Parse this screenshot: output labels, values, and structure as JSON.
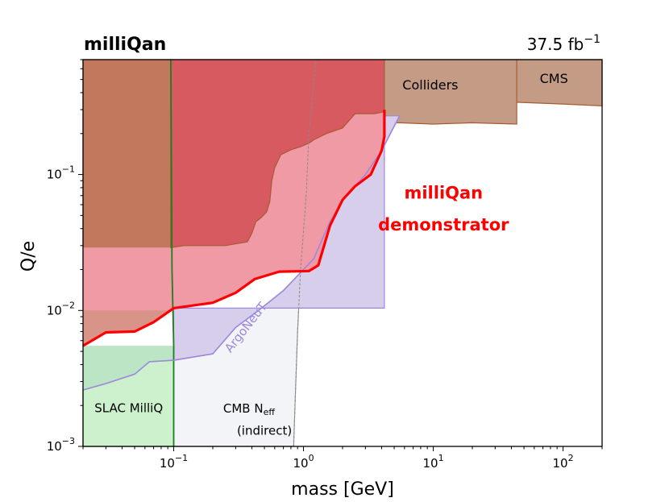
{
  "chart_data": {
    "type": "area",
    "title": "milliQan",
    "luminosity_label": "37.5 fb",
    "luminosity_exponent": "−1",
    "xlabel": "mass [GeV]",
    "ylabel": "Q/e",
    "x_scale": "log",
    "y_scale": "log",
    "xlim": [
      0.02,
      200
    ],
    "ylim": [
      0.001,
      0.7
    ],
    "grid": false,
    "x_ticks": [
      {
        "value": 0.1,
        "base": "10",
        "exp": "−1"
      },
      {
        "value": 1,
        "base": "10",
        "exp": "0"
      },
      {
        "value": 10,
        "base": "10",
        "exp": "1"
      },
      {
        "value": 100,
        "base": "10",
        "exp": "2"
      }
    ],
    "y_ticks": [
      {
        "value": 0.001,
        "base": "10",
        "exp": "−3"
      },
      {
        "value": 0.01,
        "base": "10",
        "exp": "−2"
      },
      {
        "value": 0.1,
        "base": "10",
        "exp": "−1"
      }
    ],
    "regions": [
      {
        "name": "Colliders",
        "fill": "#c49c86",
        "stroke": "#a85a34",
        "points": [
          [
            4.2,
            0.7
          ],
          [
            4.2,
            0.24
          ],
          [
            5.5,
            0.24
          ],
          [
            10,
            0.235
          ],
          [
            20,
            0.24
          ],
          [
            44,
            0.235
          ],
          [
            44,
            0.7
          ]
        ]
      },
      {
        "name": "CMS",
        "fill": "#c49c86",
        "stroke": "#a85a34",
        "points": [
          [
            44,
            0.7
          ],
          [
            44,
            0.34
          ],
          [
            100,
            0.33
          ],
          [
            200,
            0.32
          ],
          [
            200,
            0.7
          ]
        ]
      },
      {
        "name": "Colliders low-mass",
        "fill": "#c1785d",
        "stroke": "#a85a34",
        "points": [
          [
            0.02,
            0.7
          ],
          [
            0.02,
            0.01
          ],
          [
            0.032,
            0.01
          ],
          [
            0.095,
            0.01
          ],
          [
            0.095,
            0.7
          ]
        ]
      },
      {
        "name": "SLAC MilliQ",
        "fill": "#cdf1cd",
        "stroke": "#2b8a2b",
        "points": [
          [
            0.02,
            0.001
          ],
          [
            0.02,
            0.0026
          ],
          [
            0.03,
            0.0029
          ],
          [
            0.05,
            0.0034
          ],
          [
            0.065,
            0.0042
          ],
          [
            0.08,
            0.0053
          ],
          [
            0.1,
            0.0053
          ],
          [
            0.1,
            0.001
          ]
        ]
      },
      {
        "name": "SLAC MilliQ upper",
        "fill": "#bce5c6",
        "stroke": "none",
        "points": [
          [
            0.02,
            0.0026
          ],
          [
            0.02,
            0.0055
          ],
          [
            0.1,
            0.0055
          ],
          [
            0.1,
            0.0043
          ],
          [
            0.065,
            0.0042
          ],
          [
            0.05,
            0.0034
          ],
          [
            0.03,
            0.0029
          ]
        ]
      },
      {
        "name": "CMB Neff (indirect)",
        "fill": "#f2f4f7",
        "stroke": "#999999",
        "points": [
          [
            0.1,
            0.001
          ],
          [
            0.1,
            0.0043
          ],
          [
            0.2,
            0.0048
          ],
          [
            0.3,
            0.0075
          ],
          [
            0.45,
            0.01
          ],
          [
            0.7,
            0.014
          ],
          [
            1.0,
            0.02
          ],
          [
            1.2,
            0.024
          ],
          [
            1.35,
            0.7
          ],
          [
            1.25,
            0.7
          ],
          [
            1.1,
            0.2
          ],
          [
            1.05,
            0.07
          ],
          [
            0.95,
            0.02
          ],
          [
            0.9,
            0.007
          ],
          [
            0.86,
            0.002
          ],
          [
            0.84,
            0.001
          ]
        ]
      },
      {
        "name": "ArgoNeuT",
        "fill": "#d7ceeb",
        "stroke": "#9c88dc",
        "points": [
          [
            0.1,
            0.0043
          ],
          [
            0.2,
            0.0048
          ],
          [
            0.3,
            0.0075
          ],
          [
            0.45,
            0.01
          ],
          [
            0.7,
            0.014
          ],
          [
            1.0,
            0.02
          ],
          [
            1.2,
            0.024
          ],
          [
            1.6,
            0.045
          ],
          [
            2.0,
            0.065
          ],
          [
            3.0,
            0.1
          ],
          [
            4.0,
            0.15
          ],
          [
            5.5,
            0.27
          ],
          [
            4.2,
            0.27
          ],
          [
            4.2,
            0.0104
          ],
          [
            0.1,
            0.0104
          ]
        ]
      },
      {
        "name": "milliQan demonstrator",
        "fill": "#f09aa6",
        "stroke": "none",
        "points": [
          [
            0.02,
            0.0055
          ],
          [
            0.03,
            0.0069
          ],
          [
            0.05,
            0.007
          ],
          [
            0.07,
            0.0082
          ],
          [
            0.1,
            0.0104
          ],
          [
            0.2,
            0.0114
          ],
          [
            0.3,
            0.0135
          ],
          [
            0.42,
            0.017
          ],
          [
            0.65,
            0.0193
          ],
          [
            1.1,
            0.0195
          ],
          [
            1.3,
            0.0215
          ],
          [
            1.6,
            0.042
          ],
          [
            2.0,
            0.065
          ],
          [
            2.5,
            0.082
          ],
          [
            3.3,
            0.1
          ],
          [
            4.0,
            0.15
          ],
          [
            4.2,
            0.19
          ],
          [
            4.2,
            0.7
          ],
          [
            0.095,
            0.7
          ],
          [
            0.095,
            0.029
          ],
          [
            0.02,
            0.029
          ]
        ]
      },
      {
        "name": "Dark red exclusion",
        "fill": "#d65a5f",
        "stroke": "#a85a34",
        "points": [
          [
            0.095,
            0.7
          ],
          [
            0.095,
            0.029
          ],
          [
            0.12,
            0.03
          ],
          [
            0.25,
            0.03
          ],
          [
            0.37,
            0.032
          ],
          [
            0.4,
            0.037
          ],
          [
            0.43,
            0.045
          ],
          [
            0.47,
            0.048
          ],
          [
            0.52,
            0.053
          ],
          [
            0.55,
            0.063
          ],
          [
            0.57,
            0.09
          ],
          [
            0.6,
            0.112
          ],
          [
            0.67,
            0.14
          ],
          [
            0.8,
            0.152
          ],
          [
            0.95,
            0.16
          ],
          [
            1.1,
            0.17
          ],
          [
            1.2,
            0.18
          ],
          [
            1.5,
            0.2
          ],
          [
            2.0,
            0.22
          ],
          [
            2.5,
            0.28
          ],
          [
            3.5,
            0.28
          ],
          [
            4.2,
            0.29
          ],
          [
            4.2,
            0.7
          ]
        ]
      },
      {
        "name": "milliQan demonstrator low strip",
        "fill": "#d9948a",
        "stroke": "none",
        "points": [
          [
            0.02,
            0.0055
          ],
          [
            0.02,
            0.01
          ],
          [
            0.095,
            0.01
          ],
          [
            0.1,
            0.0104
          ],
          [
            0.07,
            0.0082
          ],
          [
            0.05,
            0.007
          ],
          [
            0.03,
            0.0069
          ]
        ]
      }
    ],
    "lines": [
      {
        "name": "SLAC MilliQ boundary",
        "color": "#1e7f1e",
        "width": 1.8,
        "points": [
          [
            0.095,
            0.7
          ],
          [
            0.096,
            0.1
          ],
          [
            0.097,
            0.02
          ],
          [
            0.1,
            0.0055
          ],
          [
            0.1,
            0.001
          ]
        ]
      },
      {
        "name": "ArgoNeuT",
        "color": "#9c88dc",
        "width": 1.6,
        "points": [
          [
            0.02,
            0.0026
          ],
          [
            0.03,
            0.0029
          ],
          [
            0.05,
            0.0034
          ],
          [
            0.065,
            0.0042
          ],
          [
            0.1,
            0.0043
          ],
          [
            0.2,
            0.0048
          ],
          [
            0.3,
            0.0075
          ],
          [
            0.45,
            0.01
          ],
          [
            0.7,
            0.014
          ],
          [
            1.0,
            0.02
          ],
          [
            1.2,
            0.024
          ],
          [
            1.6,
            0.045
          ],
          [
            2.0,
            0.065
          ],
          [
            3.0,
            0.1
          ],
          [
            4.0,
            0.15
          ],
          [
            5.5,
            0.27
          ]
        ]
      },
      {
        "name": "CMB Neff (indirect)",
        "color": "#888888",
        "width": 1.0,
        "dash": "3,2",
        "points": [
          [
            0.84,
            0.001
          ],
          [
            0.86,
            0.002
          ],
          [
            0.9,
            0.007
          ],
          [
            0.95,
            0.02
          ],
          [
            1.05,
            0.07
          ],
          [
            1.1,
            0.2
          ],
          [
            1.25,
            0.7
          ]
        ]
      },
      {
        "name": "milliQan demonstrator",
        "color": "#ff0000",
        "width": 3.2,
        "points": [
          [
            0.02,
            0.0055
          ],
          [
            0.03,
            0.0069
          ],
          [
            0.05,
            0.007
          ],
          [
            0.07,
            0.0082
          ],
          [
            0.1,
            0.0104
          ],
          [
            0.2,
            0.0114
          ],
          [
            0.3,
            0.0135
          ],
          [
            0.42,
            0.017
          ],
          [
            0.65,
            0.0193
          ],
          [
            1.1,
            0.0195
          ],
          [
            1.3,
            0.0215
          ],
          [
            1.6,
            0.042
          ],
          [
            2.0,
            0.065
          ],
          [
            2.5,
            0.082
          ],
          [
            3.3,
            0.1
          ],
          [
            4.0,
            0.15
          ],
          [
            4.2,
            0.19
          ],
          [
            4.2,
            0.3
          ]
        ]
      }
    ],
    "annotations": [
      {
        "key": "colliders",
        "text": "Colliders",
        "x": 9.5,
        "y": 0.45,
        "color": "#000000",
        "size": 16,
        "weight": "normal"
      },
      {
        "key": "cms",
        "text": "CMS",
        "x": 85,
        "y": 0.5,
        "color": "#000000",
        "size": 16,
        "weight": "normal"
      },
      {
        "key": "slac",
        "text": "SLAC MilliQ",
        "x": 0.045,
        "y": 0.0019,
        "color": "#000000",
        "size": 15,
        "weight": "normal"
      },
      {
        "key": "cmb_indirect",
        "text": "(indirect)",
        "x": 0.5,
        "y": 0.0013,
        "color": "#000000",
        "size": 15,
        "weight": "normal"
      },
      {
        "key": "mq_line1",
        "text": "milliQan",
        "x": 12,
        "y": 0.072,
        "color": "#ff0000",
        "size": 21,
        "weight": "bold"
      },
      {
        "key": "mq_line2",
        "text": "demonstrator",
        "x": 12,
        "y": 0.042,
        "color": "#ff0000",
        "size": 21,
        "weight": "bold"
      }
    ],
    "cmb_label": {
      "text": "CMB N",
      "subscript": "eff",
      "x": 0.38,
      "y": 0.0019
    },
    "argoneut_label": {
      "text": "ArgoNeuT",
      "x": 0.38,
      "y": 0.0072,
      "angle": -52,
      "color": "#9c88dc"
    }
  }
}
